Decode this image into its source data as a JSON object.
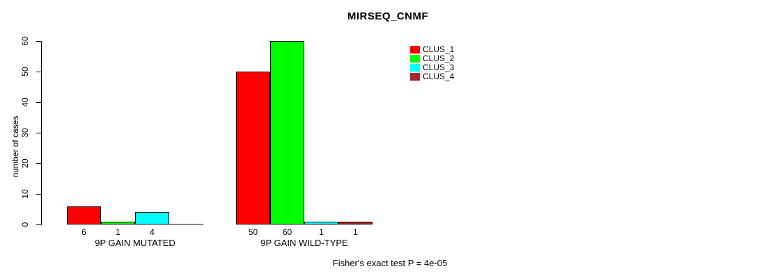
{
  "chart_data": {
    "type": "bar",
    "title": "MIRSEQ_CNMF",
    "ylabel": "number of cases",
    "xlabel": "",
    "categories": [
      "9P GAIN MUTATED",
      "9P GAIN WILD-TYPE"
    ],
    "series": [
      {
        "name": "CLUS_1",
        "color": "#FF0000",
        "values": [
          6,
          50
        ]
      },
      {
        "name": "CLUS_2",
        "color": "#00FF00",
        "values": [
          1,
          60
        ]
      },
      {
        "name": "CLUS_3",
        "color": "#00FFFF",
        "values": [
          4,
          1
        ]
      },
      {
        "name": "CLUS_4",
        "color": "#A52A2A",
        "values": [
          0,
          1
        ]
      }
    ],
    "bar_value_labels": [
      [
        "6",
        "1",
        "4",
        ""
      ],
      [
        "50",
        "60",
        "1",
        "1"
      ]
    ],
    "ylim": [
      0,
      60
    ],
    "yticks": [
      0,
      10,
      20,
      30,
      40,
      50,
      60
    ],
    "grid": false,
    "legend_position": "right",
    "bar_border_color": "#000000",
    "annotation": "Fisher's exact test P = 4e-05"
  }
}
